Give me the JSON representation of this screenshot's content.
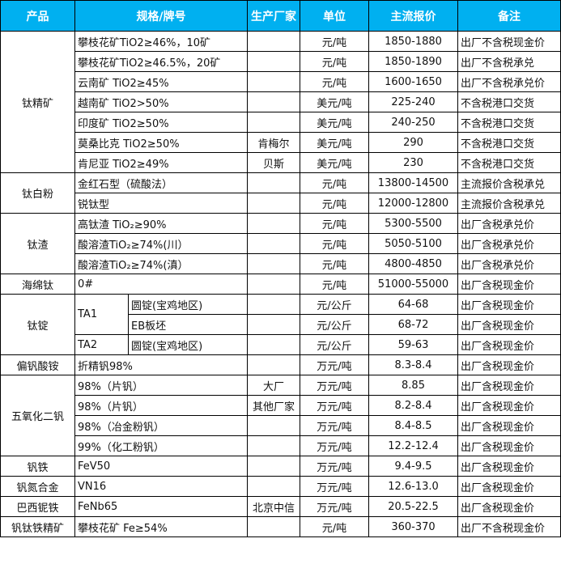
{
  "header": {
    "product": "产品",
    "spec": "规格/牌号",
    "maker": "生产厂家",
    "unit": "单位",
    "price": "主流报价",
    "note": "备注"
  },
  "colors": {
    "header_bg": "#00B0F0"
  },
  "groups": [
    {
      "product": "钛精矿",
      "items": [
        {
          "spec": "攀枝花矿TiO2≥46%，10矿",
          "maker": "",
          "unit": "元/吨",
          "price": "1850-1880",
          "note": "出厂不含税现金价"
        },
        {
          "spec": "攀枝花矿TiO2≥46.5%，20矿",
          "maker": "",
          "unit": "元/吨",
          "price": "1850-1890",
          "note": "出厂不含税承兑"
        },
        {
          "spec": "云南矿 TiO2≥45%",
          "maker": "",
          "unit": "元/吨",
          "price": "1600-1650",
          "note": "出厂不含税承兑价"
        },
        {
          "spec": "越南矿 TiO2>50%",
          "maker": "",
          "unit": "美元/吨",
          "price": "225-240",
          "note": "不含税港口交货"
        },
        {
          "spec": "印度矿 TiO2≥50%",
          "maker": "",
          "unit": "美元/吨",
          "price": "240-250",
          "note": "不含税港口交货"
        },
        {
          "spec": "莫桑比克 TiO2≥50%",
          "maker": "肯梅尔",
          "unit": "美元/吨",
          "price": "290",
          "note": "不含税港口交货"
        },
        {
          "spec": "肯尼亚 TiO2≥49%",
          "maker": "贝斯",
          "unit": "美元/吨",
          "price": "230",
          "note": "不含税港口交货"
        }
      ]
    },
    {
      "product": "钛白粉",
      "items": [
        {
          "spec": "金红石型（硫酸法）",
          "maker": "",
          "unit": "元/吨",
          "price": "13800-14500",
          "note": "主流报价含税承兑"
        },
        {
          "spec": "锐钛型",
          "maker": "",
          "unit": "元/吨",
          "price": "12000-12800",
          "note": "主流报价含税承兑"
        }
      ]
    },
    {
      "product": "钛渣",
      "items": [
        {
          "spec": "高钛渣 TiO₂≥90%",
          "maker": "",
          "unit": "元/吨",
          "price": "5300-5500",
          "note": "出厂含税承兑价"
        },
        {
          "spec": "酸溶渣TiO₂≥74%(川）",
          "maker": "",
          "unit": "元/吨",
          "price": "5050-5100",
          "note": "出厂含税承兑价"
        },
        {
          "spec": "酸溶渣TiO₂≥74%(滇）",
          "maker": "",
          "unit": "元/吨",
          "price": "4800-4850",
          "note": "出厂含税承兑价"
        }
      ]
    },
    {
      "product": "海绵钛",
      "items": [
        {
          "spec": "0#",
          "maker": "",
          "unit": "元/吨",
          "price": "51000-55000",
          "note": "出厂含税现金价"
        }
      ]
    },
    {
      "product": "钛锭",
      "items": [
        {
          "grade": "TA1",
          "grade_span": 2,
          "spec": "圆锭(宝鸡地区)",
          "maker": "",
          "unit": "元/公斤",
          "price": "64-68",
          "note": "出厂含税现金价"
        },
        {
          "spec": "EB板坯",
          "maker": "",
          "unit": "元/公斤",
          "price": "68-72",
          "note": "出厂含税现金价"
        },
        {
          "grade": "TA2",
          "grade_span": 1,
          "spec": "圆锭(宝鸡地区)",
          "maker": "",
          "unit": "元/公斤",
          "price": "59-63",
          "note": "出厂含税现金价"
        }
      ]
    },
    {
      "product": "偏钒酸铵",
      "items": [
        {
          "spec": "折精钒98%",
          "maker": "",
          "unit": "万元/吨",
          "price": "8.3-8.4",
          "note": "出厂含税现金价"
        }
      ]
    },
    {
      "product": "五氧化二钒",
      "items": [
        {
          "spec": "98%（片钒）",
          "maker": "大厂",
          "unit": "万元/吨",
          "price": "8.85",
          "note": "出厂含税现金价"
        },
        {
          "spec": "98%（片钒）",
          "maker": "其他厂家",
          "unit": "万元/吨",
          "price": "8.2-8.4",
          "note": "出厂含税现金价"
        },
        {
          "spec": "98%（冶金粉钒）",
          "maker": "",
          "unit": "万元/吨",
          "price": "8.4-8.5",
          "note": "出厂含税现金价"
        },
        {
          "spec": "99%（化工粉钒）",
          "maker": "",
          "unit": "万元/吨",
          "price": "12.2-12.4",
          "note": "出厂含税现金价"
        }
      ]
    },
    {
      "product": "钒铁",
      "items": [
        {
          "spec": "FeV50",
          "maker": "",
          "unit": "万元/吨",
          "price": "9.4-9.5",
          "note": "出厂含税现金价"
        }
      ]
    },
    {
      "product": "钒氮合金",
      "items": [
        {
          "spec": "VN16",
          "maker": "",
          "unit": "万元/吨",
          "price": "12.6-13.0",
          "note": "出厂含税现金价"
        }
      ]
    },
    {
      "product": "巴西铌铁",
      "items": [
        {
          "spec": "FeNb65",
          "maker": "北京中信",
          "unit": "万元/吨",
          "price": "20.5-22.5",
          "note": "出厂含税现金价"
        }
      ]
    },
    {
      "product": "钒钛铁精矿",
      "items": [
        {
          "spec": "攀枝花矿 Fe≥54%",
          "maker": "",
          "unit": "元/吨",
          "price": "360-370",
          "note": "出厂不含税现金价"
        }
      ]
    }
  ]
}
